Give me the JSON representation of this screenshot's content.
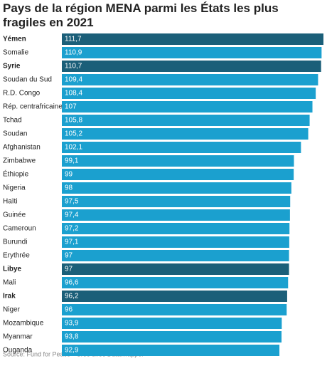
{
  "chart_data": {
    "type": "bar",
    "orientation": "horizontal",
    "title": "Pays de la région MENA parmi les États les plus fragiles en 2021",
    "categories": [
      "Yémen",
      "Somalie",
      "Syrie",
      "Soudan du Sud",
      "R.D. Congo",
      "Rép. centrafricaine",
      "Tchad",
      "Soudan",
      "Afghanistan",
      "Zimbabwe",
      "Éthiopie",
      "Nigeria",
      "Haïti",
      "Guinée",
      "Cameroun",
      "Burundi",
      "Erythrée",
      "Libye",
      "Mali",
      "Irak",
      "Niger",
      "Mozambique",
      "Myanmar",
      "Ouganda"
    ],
    "values": [
      111.7,
      110.9,
      110.7,
      109.4,
      108.4,
      107,
      105.8,
      105.2,
      102.1,
      99.1,
      99,
      98,
      97.5,
      97.4,
      97.2,
      97.1,
      97,
      97,
      96.6,
      96.2,
      96,
      93.9,
      93.8,
      92.9
    ],
    "value_labels": [
      "111,7",
      "110,9",
      "110,7",
      "109,4",
      "108,4",
      "107",
      "105,8",
      "105,2",
      "102,1",
      "99,1",
      "99",
      "98",
      "97,5",
      "97,4",
      "97,2",
      "97,1",
      "97",
      "97",
      "96,6",
      "96,2",
      "96",
      "93,9",
      "93,8",
      "92,9"
    ],
    "colors": [
      "#1b5f79",
      "#1ba0cf",
      "#1b5f79",
      "#1ba0cf",
      "#1ba0cf",
      "#1ba0cf",
      "#1ba0cf",
      "#1ba0cf",
      "#1ba0cf",
      "#1ba0cf",
      "#1ba0cf",
      "#1ba0cf",
      "#1ba0cf",
      "#1ba0cf",
      "#1ba0cf",
      "#1ba0cf",
      "#1ba0cf",
      "#1b5f79",
      "#1ba0cf",
      "#1b5f79",
      "#1ba0cf",
      "#1ba0cf",
      "#1ba0cf",
      "#1ba0cf"
    ],
    "highlight_color": "#1b5f79",
    "source": "Source: Fund for Peace • Créé avec Datawrapper"
  }
}
